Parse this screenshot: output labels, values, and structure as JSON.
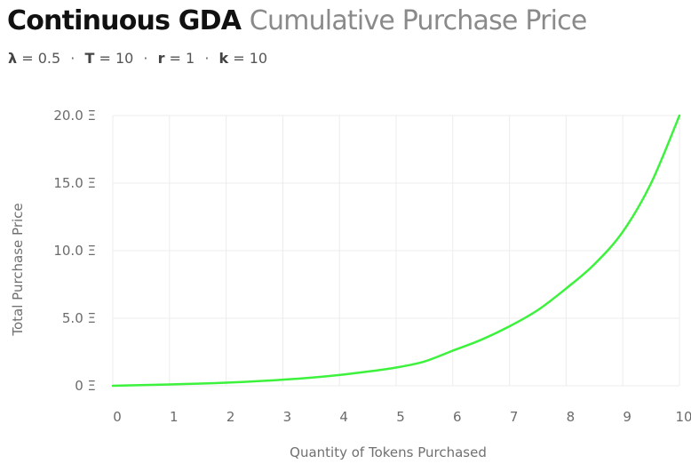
{
  "header": {
    "title_main": "Continuous GDA",
    "title_sub": "Cumulative Purchase Price",
    "params": [
      {
        "symbol": "λ",
        "value": "0.5"
      },
      {
        "symbol": "T",
        "value": "10"
      },
      {
        "symbol": "r",
        "value": "1"
      },
      {
        "symbol": "k",
        "value": "10"
      }
    ]
  },
  "colors": {
    "line": "#3cf23c",
    "grid": "#ececec",
    "text": "#6b6b6b"
  },
  "chart_data": {
    "type": "line",
    "title": "Continuous GDA Cumulative Purchase Price",
    "xlabel": "Quantity of Tokens Purchased",
    "ylabel": "Total Purchase Price",
    "xlim": [
      0,
      10
    ],
    "ylim": [
      0,
      20
    ],
    "xticks": [
      "0",
      "1",
      "2",
      "3",
      "4",
      "5",
      "6",
      "7",
      "8",
      "9",
      "10"
    ],
    "yticks": [
      "0 Ξ",
      "5.0 Ξ",
      "10.0 Ξ",
      "15.0 Ξ",
      "20.0 Ξ"
    ],
    "grid": true,
    "series": [
      {
        "x": [
          0,
          0.5,
          1,
          1.5,
          2,
          2.5,
          3,
          3.5,
          4,
          4.5,
          5,
          5.5,
          6,
          6.5,
          7,
          7.5,
          8,
          8.5,
          9,
          9.5,
          10
        ],
        "values": [
          0,
          0.05,
          0.1,
          0.16,
          0.23,
          0.33,
          0.45,
          0.6,
          0.8,
          1.05,
          1.35,
          1.8,
          2.6,
          3.4,
          4.4,
          5.6,
          7.2,
          9.0,
          11.4,
          15.0,
          20.0
        ]
      }
    ]
  }
}
